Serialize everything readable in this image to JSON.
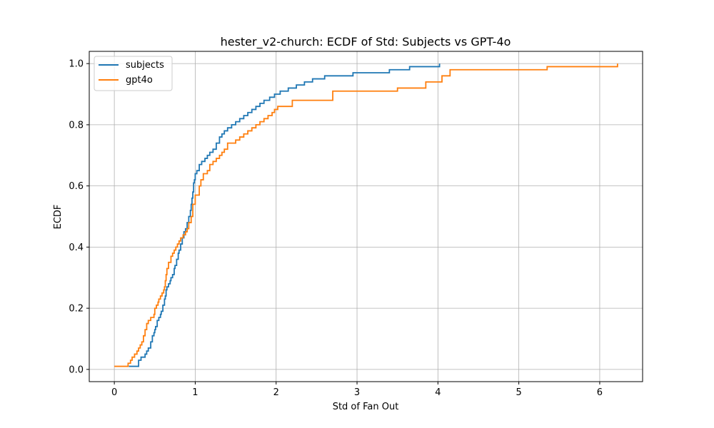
{
  "chart_data": {
    "type": "line",
    "title": "hester_v2-church: ECDF of Std: Subjects vs GPT-4o",
    "xlabel": "Std of Fan Out",
    "ylabel": "ECDF",
    "xlim": [
      -0.31,
      6.53
    ],
    "ylim": [
      -0.04,
      1.04
    ],
    "xticks": [
      0,
      1,
      2,
      3,
      4,
      5,
      6
    ],
    "yticks": [
      0.0,
      0.2,
      0.4,
      0.6,
      0.8,
      1.0
    ],
    "xtick_labels": [
      "0",
      "1",
      "2",
      "3",
      "4",
      "5",
      "6"
    ],
    "ytick_labels": [
      "0.0",
      "0.2",
      "0.4",
      "0.6",
      "0.8",
      "1.0"
    ],
    "grid": true,
    "legend_position": "top-left",
    "series": [
      {
        "name": "subjects",
        "color": "#1f77b4",
        "step": "post",
        "x": [
          0.18,
          0.3,
          0.33,
          0.38,
          0.4,
          0.42,
          0.45,
          0.47,
          0.49,
          0.5,
          0.51,
          0.53,
          0.55,
          0.57,
          0.58,
          0.6,
          0.62,
          0.63,
          0.64,
          0.65,
          0.67,
          0.69,
          0.7,
          0.72,
          0.74,
          0.75,
          0.77,
          0.79,
          0.8,
          0.82,
          0.84,
          0.86,
          0.88,
          0.9,
          0.92,
          0.94,
          0.95,
          0.96,
          0.97,
          0.98,
          0.99,
          1.0,
          1.02,
          1.05,
          1.08,
          1.12,
          1.15,
          1.18,
          1.22,
          1.26,
          1.3,
          1.33,
          1.36,
          1.4,
          1.45,
          1.5,
          1.55,
          1.6,
          1.65,
          1.7,
          1.75,
          1.8,
          1.85,
          1.92,
          1.98,
          2.05,
          2.15,
          2.25,
          2.35,
          2.45,
          2.6,
          2.75,
          2.95,
          3.15,
          3.4,
          3.65,
          3.85,
          4.0,
          4.02
        ],
        "y": [
          0.01,
          0.03,
          0.04,
          0.05,
          0.06,
          0.07,
          0.09,
          0.11,
          0.12,
          0.13,
          0.14,
          0.16,
          0.17,
          0.18,
          0.19,
          0.21,
          0.23,
          0.24,
          0.26,
          0.27,
          0.28,
          0.29,
          0.3,
          0.31,
          0.33,
          0.34,
          0.36,
          0.38,
          0.39,
          0.41,
          0.43,
          0.45,
          0.46,
          0.48,
          0.5,
          0.52,
          0.54,
          0.56,
          0.58,
          0.61,
          0.62,
          0.64,
          0.65,
          0.67,
          0.68,
          0.69,
          0.7,
          0.71,
          0.72,
          0.74,
          0.76,
          0.77,
          0.78,
          0.79,
          0.8,
          0.81,
          0.82,
          0.83,
          0.84,
          0.85,
          0.86,
          0.87,
          0.88,
          0.89,
          0.9,
          0.91,
          0.92,
          0.93,
          0.94,
          0.95,
          0.96,
          0.96,
          0.97,
          0.97,
          0.98,
          0.99,
          0.99,
          0.99,
          1.0
        ]
      },
      {
        "name": "gpt4o",
        "color": "#ff7f0e",
        "step": "post",
        "x": [
          0.0,
          0.17,
          0.2,
          0.22,
          0.25,
          0.28,
          0.3,
          0.32,
          0.34,
          0.36,
          0.38,
          0.4,
          0.42,
          0.45,
          0.49,
          0.5,
          0.52,
          0.54,
          0.55,
          0.57,
          0.59,
          0.61,
          0.62,
          0.63,
          0.64,
          0.65,
          0.67,
          0.7,
          0.72,
          0.74,
          0.76,
          0.78,
          0.8,
          0.82,
          0.85,
          0.88,
          0.9,
          0.92,
          0.95,
          0.97,
          1.0,
          1.05,
          1.07,
          1.1,
          1.15,
          1.18,
          1.22,
          1.26,
          1.3,
          1.33,
          1.36,
          1.4,
          1.5,
          1.55,
          1.6,
          1.65,
          1.7,
          1.75,
          1.8,
          1.85,
          1.9,
          1.95,
          1.98,
          2.02,
          2.2,
          2.7,
          3.5,
          3.85,
          4.05,
          4.15,
          5.35,
          6.22
        ],
        "y": [
          0.01,
          0.02,
          0.03,
          0.04,
          0.05,
          0.06,
          0.07,
          0.08,
          0.09,
          0.11,
          0.13,
          0.15,
          0.16,
          0.17,
          0.18,
          0.2,
          0.21,
          0.22,
          0.23,
          0.24,
          0.25,
          0.26,
          0.27,
          0.29,
          0.31,
          0.33,
          0.35,
          0.37,
          0.38,
          0.39,
          0.4,
          0.41,
          0.42,
          0.43,
          0.44,
          0.45,
          0.46,
          0.48,
          0.5,
          0.54,
          0.57,
          0.6,
          0.62,
          0.64,
          0.65,
          0.67,
          0.68,
          0.69,
          0.7,
          0.71,
          0.72,
          0.74,
          0.75,
          0.76,
          0.77,
          0.78,
          0.79,
          0.8,
          0.81,
          0.82,
          0.83,
          0.84,
          0.85,
          0.86,
          0.88,
          0.91,
          0.92,
          0.94,
          0.96,
          0.98,
          0.99,
          1.0
        ]
      }
    ]
  }
}
